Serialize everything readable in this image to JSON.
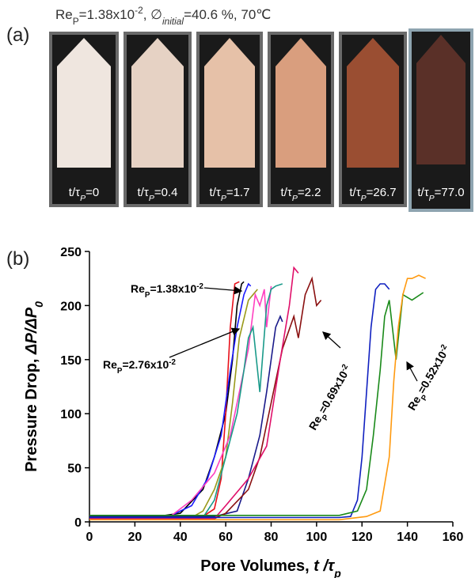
{
  "panel_a": {
    "label": "(a)",
    "caption": [
      "Re",
      "P",
      "=1.38x10",
      "-2",
      ", ∅",
      "initial",
      "=40.6 %, 70℃"
    ],
    "frames": [
      [
        "t/τ",
        "P",
        "=0"
      ],
      [
        "t/τ",
        "P",
        "=0.4"
      ],
      [
        "t/τ",
        "P",
        "=1.7"
      ],
      [
        "t/τ",
        "P",
        "=2.2"
      ],
      [
        "t/τ",
        "P",
        "=26.7"
      ],
      [
        "t/τ",
        "P",
        "=77.0"
      ]
    ]
  },
  "chart_data": {
    "type": "line",
    "panel_label": "(b)",
    "xlabel": [
      "Pore Volumes, ",
      "t /τ",
      "p"
    ],
    "ylabel": [
      "Pressure Drop, ",
      "ΔP/ΔP",
      "0"
    ],
    "xlim": [
      0,
      160
    ],
    "ylim": [
      0,
      250
    ],
    "xticks": [
      0,
      20,
      40,
      60,
      80,
      100,
      120,
      140,
      160
    ],
    "yticks": [
      0,
      50,
      100,
      150,
      200,
      250
    ],
    "annotations": [
      [
        "Re",
        "P",
        "=1.38x10",
        "-2"
      ],
      [
        "Re",
        "P",
        "=2.76x10",
        "-2"
      ],
      [
        "Re",
        "P",
        "=0.69x10",
        "-2"
      ],
      [
        "Re",
        "P",
        "=0.52x10",
        "-2"
      ]
    ],
    "series": [
      {
        "color": "#000000",
        "x": [
          0,
          30,
          40,
          50,
          55,
          60,
          63,
          65,
          67,
          68
        ],
        "values": [
          5,
          5,
          8,
          30,
          60,
          100,
          150,
          200,
          220,
          222
        ]
      },
      {
        "color": "#e8101a",
        "x": [
          0,
          40,
          50,
          55,
          58,
          60,
          62,
          64,
          66
        ],
        "values": [
          3,
          3,
          5,
          12,
          40,
          100,
          180,
          220,
          222
        ]
      },
      {
        "color": "#1a1aff",
        "x": [
          0,
          35,
          45,
          52,
          58,
          62,
          65,
          68,
          70,
          71
        ],
        "values": [
          5,
          5,
          15,
          40,
          80,
          140,
          180,
          210,
          220,
          218
        ]
      },
      {
        "color": "#9a9a1a",
        "x": [
          0,
          45,
          50,
          55,
          60,
          63,
          66,
          70,
          72,
          74
        ],
        "values": [
          4,
          4,
          10,
          30,
          60,
          110,
          170,
          205,
          210,
          215
        ]
      },
      {
        "color": "#ff40c0",
        "x": [
          0,
          35,
          45,
          55,
          62,
          67,
          70,
          73,
          75,
          77,
          78,
          80
        ],
        "values": [
          4,
          4,
          20,
          45,
          80,
          130,
          160,
          210,
          200,
          215,
          180,
          218
        ]
      },
      {
        "color": "#1a9a8a",
        "x": [
          0,
          50,
          55,
          60,
          65,
          68,
          70,
          72,
          75,
          78,
          80,
          82,
          85
        ],
        "values": [
          4,
          4,
          20,
          60,
          100,
          140,
          170,
          180,
          120,
          200,
          215,
          218,
          220
        ]
      },
      {
        "color": "#1a1a8a",
        "x": [
          0,
          55,
          65,
          70,
          75,
          78,
          80,
          82,
          84,
          85
        ],
        "values": [
          5,
          5,
          10,
          40,
          80,
          120,
          150,
          180,
          190,
          185
        ]
      },
      {
        "color": "#8a1010",
        "x": [
          0,
          55,
          60,
          70,
          75,
          80,
          85,
          90,
          92,
          95,
          98,
          100,
          102
        ],
        "values": [
          3,
          3,
          8,
          30,
          60,
          110,
          160,
          190,
          170,
          210,
          225,
          200,
          205
        ]
      },
      {
        "color": "#e0106a",
        "x": [
          0,
          55,
          60,
          70,
          78,
          84,
          88,
          90,
          92
        ],
        "values": [
          3,
          3,
          15,
          40,
          70,
          150,
          200,
          235,
          230
        ]
      },
      {
        "color": "#1020c0",
        "x": [
          0,
          110,
          115,
          118,
          120,
          122,
          124,
          126,
          128,
          130,
          132
        ],
        "values": [
          4,
          4,
          5,
          20,
          60,
          120,
          180,
          215,
          220,
          220,
          215
        ]
      },
      {
        "color": "#1a8a1a",
        "x": [
          0,
          110,
          118,
          122,
          125,
          128,
          130,
          132,
          135,
          138,
          142,
          147
        ],
        "values": [
          6,
          6,
          10,
          30,
          80,
          140,
          190,
          205,
          150,
          210,
          205,
          212
        ]
      },
      {
        "color": "#ff9a10",
        "x": [
          0,
          110,
          122,
          128,
          132,
          134,
          136,
          138,
          140,
          142,
          145,
          148
        ],
        "values": [
          2,
          2,
          5,
          10,
          60,
          130,
          180,
          210,
          225,
          225,
          228,
          225
        ]
      }
    ]
  }
}
